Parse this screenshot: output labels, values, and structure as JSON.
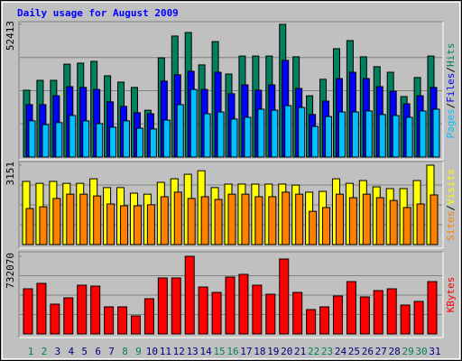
{
  "title": "Daily usage for August 2009",
  "legend_separator": "/",
  "chart_data": [
    {
      "type": "bar",
      "series": [
        {
          "name": "Hits",
          "color": "#00805c",
          "values": [
            26400,
            30300,
            30300,
            36700,
            37100,
            37800,
            32100,
            29600,
            27500,
            18500,
            39200,
            47800,
            49200,
            36400,
            45600,
            32800,
            39900,
            39900,
            39900,
            52413,
            39600,
            24200,
            30700,
            42800,
            46000,
            39600,
            35700,
            33500,
            23900,
            31400,
            39900
          ]
        },
        {
          "name": "Files",
          "color": "#0000ff",
          "values": [
            20700,
            20700,
            24200,
            27800,
            27500,
            26700,
            21800,
            20000,
            17500,
            17100,
            30000,
            32500,
            33900,
            26700,
            33500,
            25000,
            28500,
            26400,
            28500,
            38200,
            27100,
            16800,
            22100,
            31000,
            33500,
            31000,
            27800,
            26000,
            21000,
            24200,
            27500
          ]
        },
        {
          "name": "Pages",
          "color": "#00c0ff",
          "values": [
            14300,
            12800,
            13600,
            16400,
            14300,
            13200,
            11800,
            14300,
            11400,
            11100,
            14600,
            20700,
            26700,
            17100,
            17800,
            15000,
            15700,
            18900,
            18500,
            20300,
            19600,
            12100,
            16000,
            17800,
            17800,
            18200,
            16800,
            16400,
            15700,
            18200,
            18900
          ]
        }
      ],
      "ylim": [
        0,
        52413
      ],
      "yticks": [
        52413
      ]
    },
    {
      "type": "bar",
      "series": [
        {
          "name": "Visits",
          "color": "#ffff00",
          "values": [
            2506,
            2430,
            2506,
            2430,
            2430,
            2610,
            2260,
            2260,
            2040,
            2000,
            2470,
            2610,
            2790,
            2930,
            2260,
            2400,
            2400,
            2400,
            2400,
            2400,
            2360,
            2080,
            2110,
            2610,
            2430,
            2540,
            2290,
            2220,
            2220,
            2540,
            3151
          ]
        },
        {
          "name": "Sites",
          "color": "#ff8000",
          "values": [
            1430,
            1500,
            1830,
            2000,
            2000,
            1930,
            1610,
            1540,
            1540,
            1580,
            1900,
            2080,
            1830,
            1900,
            1790,
            2000,
            2000,
            1900,
            1900,
            2080,
            2000,
            1320,
            1470,
            2000,
            1860,
            2000,
            1860,
            1750,
            1470,
            1610,
            1970
          ]
        }
      ],
      "ylim": [
        0,
        3151
      ],
      "yticks": [
        3151
      ]
    },
    {
      "type": "bar",
      "categories": [
        "1",
        "2",
        "3",
        "4",
        "5",
        "6",
        "7",
        "8",
        "9",
        "10",
        "11",
        "12",
        "13",
        "14",
        "15",
        "16",
        "17",
        "18",
        "19",
        "20",
        "21",
        "22",
        "23",
        "24",
        "25",
        "26",
        "27",
        "28",
        "29",
        "30",
        "31"
      ],
      "label_colors": [
        "#00805c",
        "#00805c",
        "#000080",
        "#000080",
        "#000080",
        "#000080",
        "#000080",
        "#00805c",
        "#00805c",
        "#000080",
        "#000080",
        "#000080",
        "#000080",
        "#000080",
        "#00805c",
        "#00805c",
        "#000080",
        "#000080",
        "#000080",
        "#000080",
        "#000080",
        "#00805c",
        "#00805c",
        "#000080",
        "#000080",
        "#000080",
        "#000080",
        "#000080",
        "#00805c",
        "#00805c",
        "#000080"
      ],
      "series": [
        {
          "name": "KBytes",
          "color": "#ff0000",
          "values": [
            425600,
            476700,
            280900,
            340500,
            459700,
            451100,
            255400,
            255400,
            170200,
            332000,
            527700,
            527700,
            732070,
            442600,
            391600,
            536300,
            561800,
            459700,
            374500,
            706500,
            391600,
            229800,
            255400,
            357500,
            493700,
            349000,
            408600,
            425600,
            272400,
            306400,
            493700
          ]
        }
      ],
      "ylim": [
        0,
        732070
      ],
      "yticks": [
        732070
      ]
    }
  ]
}
